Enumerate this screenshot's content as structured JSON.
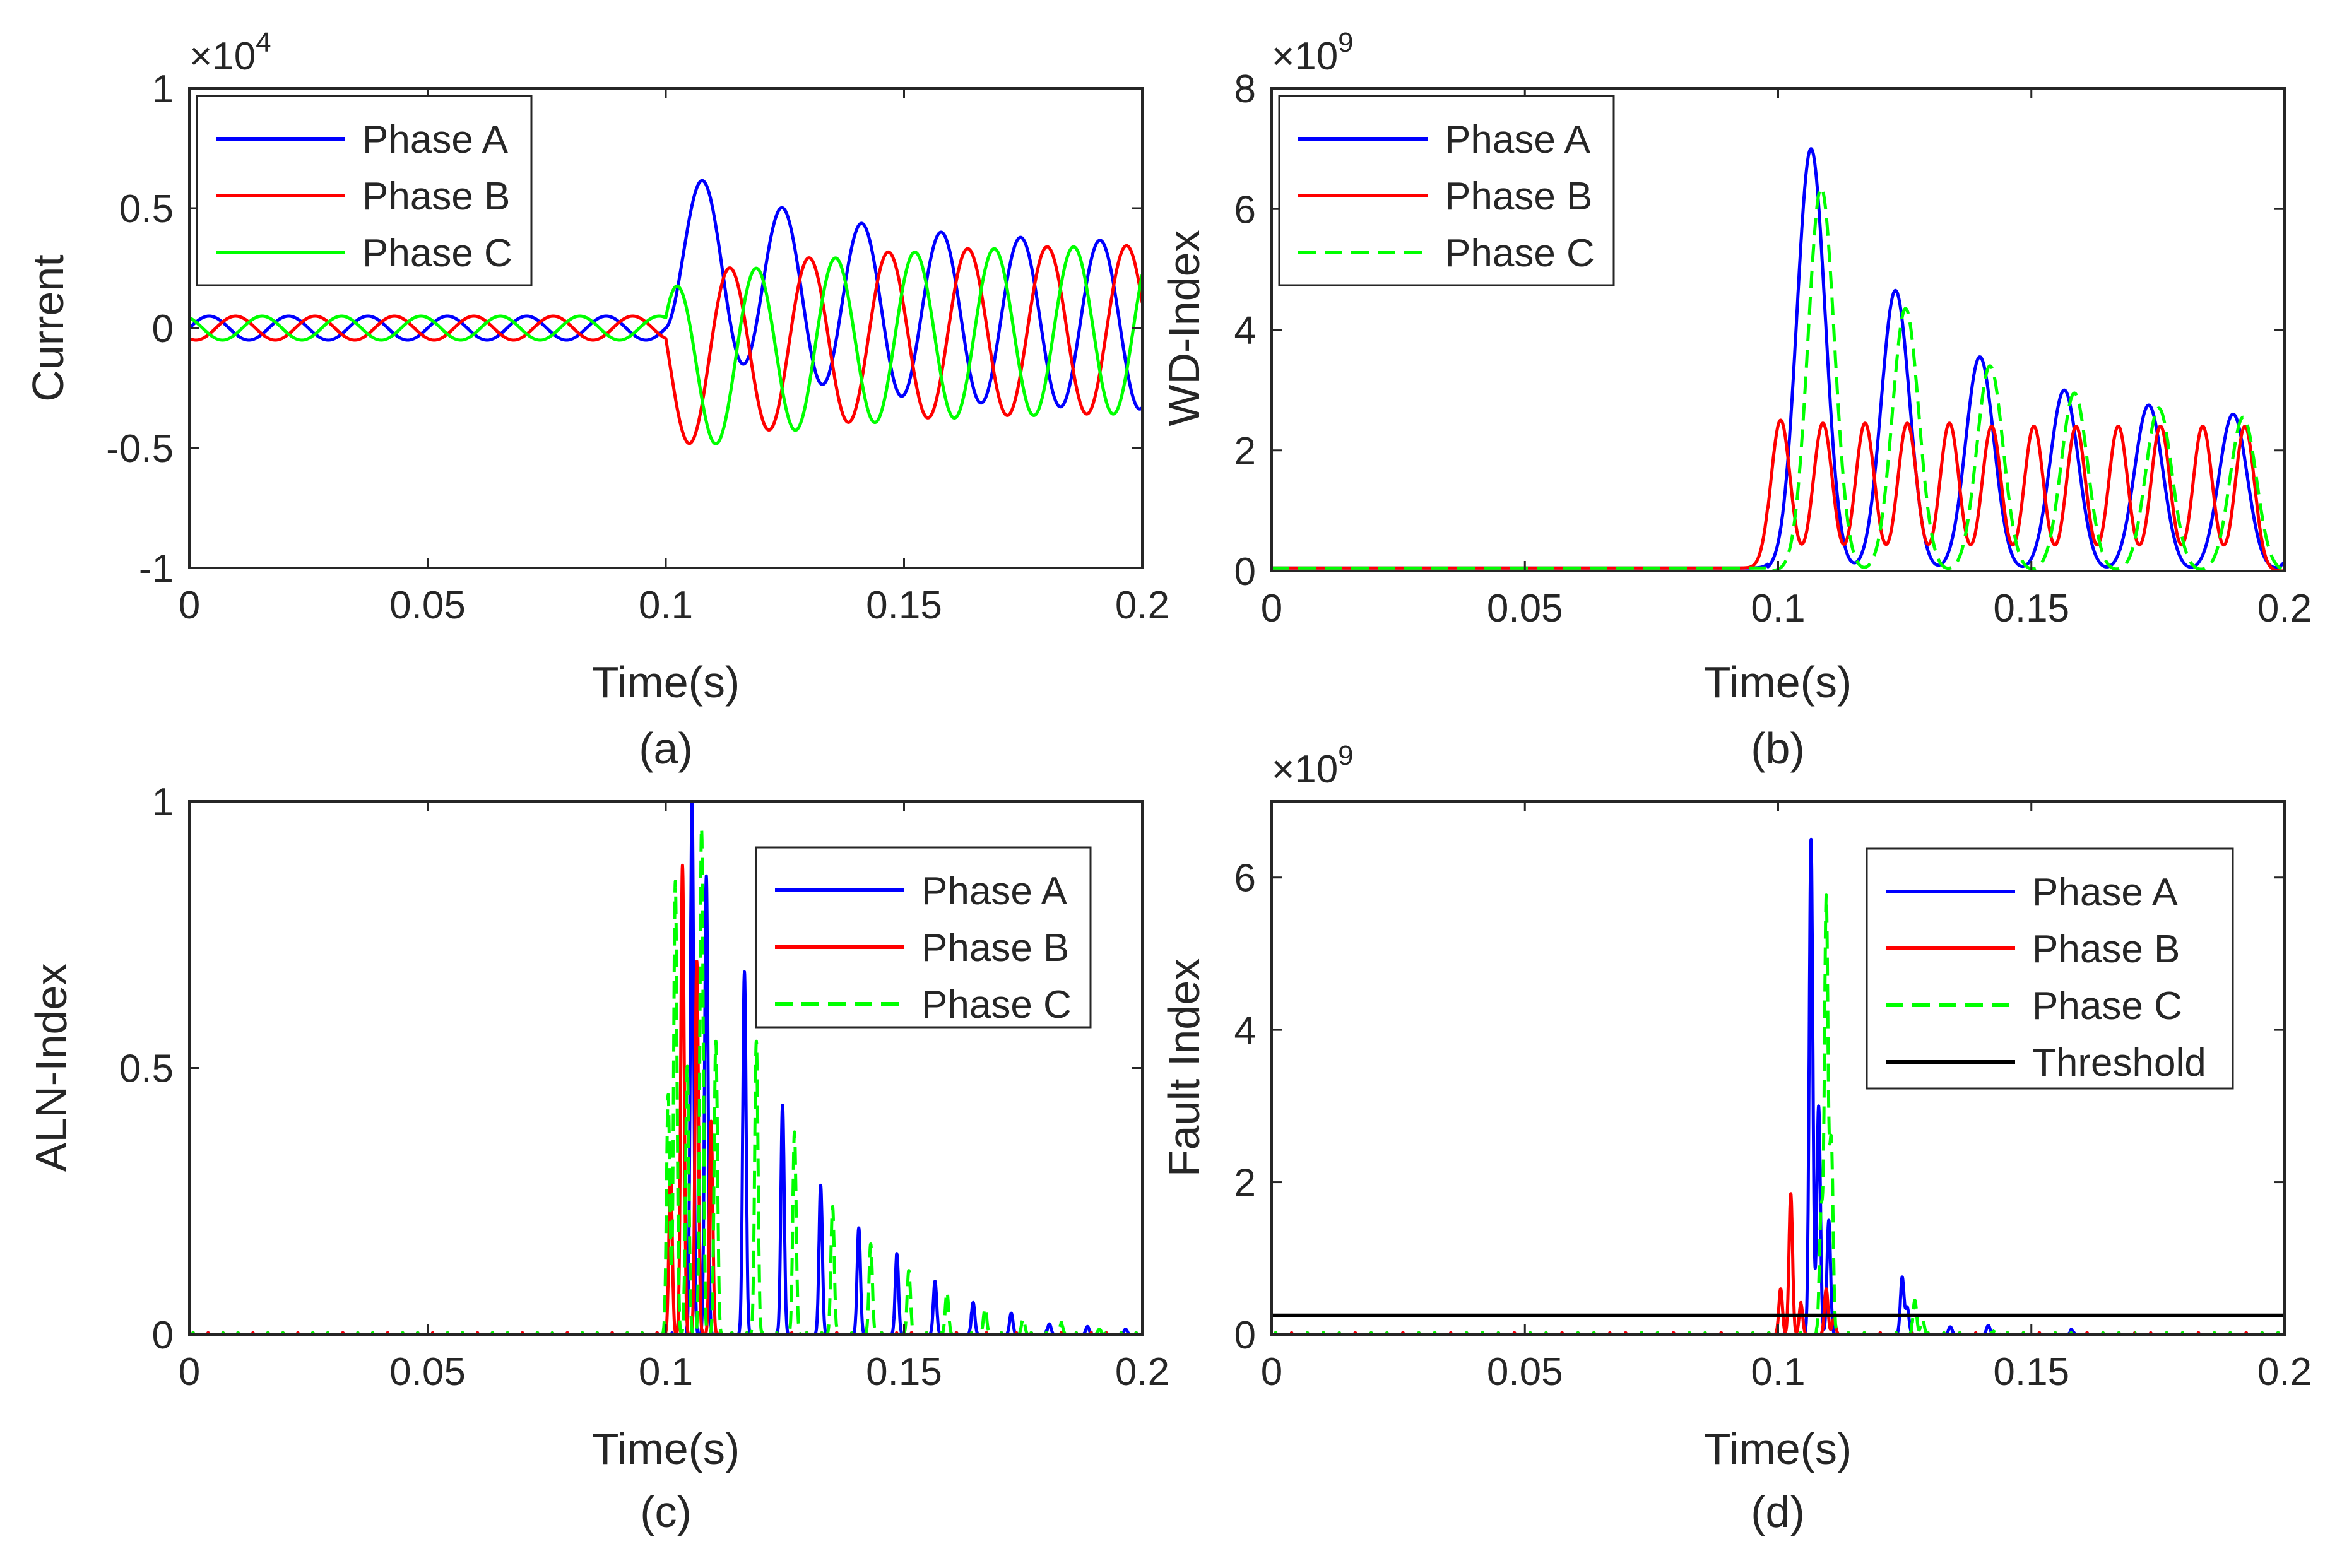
{
  "figure": {
    "panels": [
      {
        "id": "a",
        "caption": "(a)",
        "xlabel": "Time(s)",
        "ylabel": "Current",
        "exponent_base": "×10",
        "exponent_power": "4",
        "xlim": [
          0,
          0.2
        ],
        "ylim": [
          -1,
          1
        ],
        "xticks": [
          "0",
          "0.05",
          "0.1",
          "0.15",
          "0.2"
        ],
        "yticks": [
          "-1",
          "-0.5",
          "0",
          "0.5",
          "1"
        ],
        "legend": [
          "Phase A",
          "Phase B",
          "Phase C"
        ]
      },
      {
        "id": "b",
        "caption": "(b)",
        "xlabel": "Time(s)",
        "ylabel": "WD-Index",
        "exponent_base": "×10",
        "exponent_power": "9",
        "xlim": [
          0,
          0.2
        ],
        "ylim": [
          0,
          8
        ],
        "xticks": [
          "0",
          "0.05",
          "0.1",
          "0.15",
          "0.2"
        ],
        "yticks": [
          "0",
          "2",
          "4",
          "6",
          "8"
        ],
        "legend": [
          "Phase A",
          "Phase B",
          "Phase C"
        ]
      },
      {
        "id": "c",
        "caption": "(c)",
        "xlabel": "Time(s)",
        "ylabel": "ALN-Index",
        "exponent_base": "",
        "exponent_power": "",
        "xlim": [
          0,
          0.2
        ],
        "ylim": [
          0,
          1
        ],
        "xticks": [
          "0",
          "0.05",
          "0.1",
          "0.15",
          "0.2"
        ],
        "yticks": [
          "0",
          "0.5",
          "1"
        ],
        "legend": [
          "Phase A",
          "Phase B",
          "Phase C"
        ]
      },
      {
        "id": "d",
        "caption": "(d)",
        "xlabel": "Time(s)",
        "ylabel": "Fault Index",
        "exponent_base": "×10",
        "exponent_power": "9",
        "xlim": [
          0,
          0.2
        ],
        "ylim": [
          0,
          7
        ],
        "xticks": [
          "0",
          "0.05",
          "0.1",
          "0.15",
          "0.2"
        ],
        "yticks": [
          "0",
          "2",
          "4",
          "6"
        ],
        "legend": [
          "Phase A",
          "Phase B",
          "Phase C",
          "Threshold"
        ]
      }
    ]
  },
  "chart_data": [
    {
      "type": "line",
      "panel": "a",
      "xlabel": "Time(s)",
      "ylabel": "Current",
      "y_multiplier": 10000,
      "xlim": [
        0,
        0.2
      ],
      "ylim": [
        -1,
        1
      ],
      "grid": false,
      "legend_position": "top-left",
      "signal": {
        "frequency_hz": 60,
        "fault_time_s": 0.1,
        "prefault_amplitude": 0.05,
        "steady_amplitude": 0.35,
        "dc_decay_tau_s": 0.03,
        "phase_offsets_deg": [
          0,
          -120,
          120
        ]
      },
      "series": [
        {
          "name": "Phase A",
          "color": "#0000ff",
          "style": "solid",
          "peak_after_fault": 0.55
        },
        {
          "name": "Phase B",
          "color": "#ff0000",
          "style": "solid",
          "peak_after_fault": -0.35
        },
        {
          "name": "Phase C",
          "color": "#00ff00",
          "style": "solid",
          "peak_after_fault": -0.53
        }
      ]
    },
    {
      "type": "line",
      "panel": "b",
      "xlabel": "Time(s)",
      "ylabel": "WD-Index",
      "y_multiplier": 1000000000,
      "xlim": [
        0,
        0.2
      ],
      "ylim": [
        0,
        8
      ],
      "grid": false,
      "legend_position": "top-left",
      "series": [
        {
          "name": "Phase A",
          "color": "#0000ff",
          "style": "solid",
          "peaks": [
            7.0,
            4.65,
            3.55,
            3.0,
            2.75,
            2.6,
            2.3
          ],
          "pre_fault": 0.05
        },
        {
          "name": "Phase B",
          "color": "#ff0000",
          "style": "solid",
          "peaks": [
            2.5,
            2.45,
            2.45,
            2.45,
            2.45,
            2.4
          ],
          "pre_fault": 0.05
        },
        {
          "name": "Phase C",
          "color": "#00ff00",
          "style": "dashed",
          "peaks": [
            6.35,
            4.35,
            3.4,
            2.95,
            2.7,
            2.55
          ],
          "pre_fault": 0.05
        }
      ]
    },
    {
      "type": "line",
      "panel": "c",
      "xlabel": "Time(s)",
      "ylabel": "ALN-Index",
      "xlim": [
        0,
        0.2
      ],
      "ylim": [
        0,
        1
      ],
      "grid": false,
      "legend_position": "top-right",
      "series": [
        {
          "name": "Phase A",
          "color": "#0000ff",
          "style": "solid",
          "spikes": [
            [
              0.1055,
              1.0
            ],
            [
              0.1085,
              0.86
            ],
            [
              0.1165,
              0.68
            ],
            [
              0.1245,
              0.43
            ],
            [
              0.1325,
              0.28
            ],
            [
              0.1405,
              0.2
            ],
            [
              0.1485,
              0.15
            ],
            [
              0.1565,
              0.1
            ],
            [
              0.1645,
              0.06
            ],
            [
              0.1725,
              0.04
            ],
            [
              0.1805,
              0.02
            ],
            [
              0.1885,
              0.015
            ],
            [
              0.1965,
              0.01
            ]
          ]
        },
        {
          "name": "Phase B",
          "color": "#ff0000",
          "style": "solid",
          "spikes": [
            [
              0.101,
              0.3
            ],
            [
              0.1035,
              0.88
            ],
            [
              0.1065,
              0.7
            ],
            [
              0.1095,
              0.4
            ]
          ]
        },
        {
          "name": "Phase C",
          "color": "#00ff00",
          "style": "dashed",
          "spikes": [
            [
              0.1005,
              0.45
            ],
            [
              0.102,
              0.85
            ],
            [
              0.1045,
              0.5
            ],
            [
              0.1075,
              0.95
            ],
            [
              0.1105,
              0.55
            ],
            [
              0.119,
              0.55
            ],
            [
              0.127,
              0.38
            ],
            [
              0.135,
              0.24
            ],
            [
              0.143,
              0.17
            ],
            [
              0.151,
              0.12
            ],
            [
              0.159,
              0.08
            ],
            [
              0.167,
              0.05
            ],
            [
              0.175,
              0.03
            ],
            [
              0.183,
              0.02
            ],
            [
              0.191,
              0.01
            ]
          ]
        }
      ]
    },
    {
      "type": "line",
      "panel": "d",
      "xlabel": "Time(s)",
      "ylabel": "Fault Index",
      "y_multiplier": 1000000000,
      "xlim": [
        0,
        0.2
      ],
      "ylim": [
        0,
        7
      ],
      "grid": false,
      "legend_position": "top-right",
      "series": [
        {
          "name": "Phase A",
          "color": "#0000ff",
          "style": "solid",
          "spikes": [
            [
              0.1065,
              6.5
            ],
            [
              0.108,
              3.0
            ],
            [
              0.11,
              1.5
            ],
            [
              0.1245,
              0.75
            ],
            [
              0.1255,
              0.35
            ],
            [
              0.134,
              0.1
            ],
            [
              0.1415,
              0.12
            ],
            [
              0.158,
              0.05
            ]
          ]
        },
        {
          "name": "Phase B",
          "color": "#ff0000",
          "style": "solid",
          "spikes": [
            [
              0.1005,
              0.6
            ],
            [
              0.1025,
              1.85
            ],
            [
              0.1045,
              0.4
            ],
            [
              0.1095,
              0.6
            ],
            [
              0.111,
              0.2
            ]
          ]
        },
        {
          "name": "Phase C",
          "color": "#00ff00",
          "style": "dashed",
          "spikes": [
            [
              0.1095,
              5.7
            ],
            [
              0.1105,
              2.5
            ],
            [
              0.1085,
              1.6
            ],
            [
              0.127,
              0.45
            ],
            [
              0.1285,
              0.2
            ],
            [
              0.143,
              0.08
            ]
          ]
        },
        {
          "name": "Threshold",
          "color": "#000000",
          "style": "solid",
          "constant": 0.25
        }
      ]
    }
  ]
}
